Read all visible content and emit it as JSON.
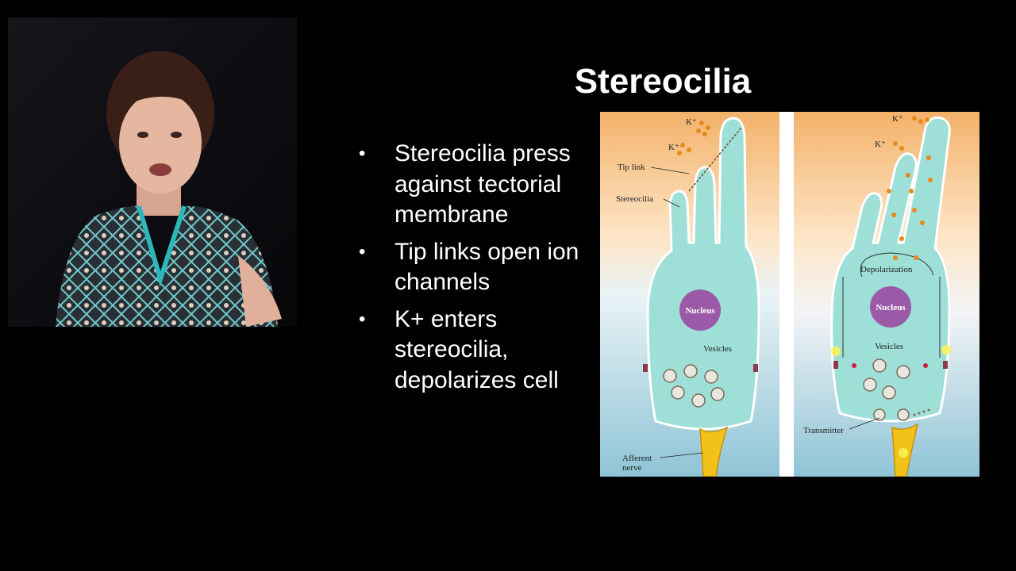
{
  "slide": {
    "title": "Stereocilia",
    "bullets": [
      "Stereocilia press against tectorial membrane",
      "Tip links open ion channels",
      "K+ enters stereocilia, depolarizes cell"
    ],
    "bullet_symbol": "•"
  },
  "figure": {
    "left": {
      "ion_label_1": "K⁺",
      "ion_label_2": "K⁺",
      "tip_link": "Tip link",
      "stereocilia": "Stereocilia",
      "nucleus": "Nucleus",
      "vesicles": "Vesicles",
      "afferent_nerve_1": "Afferent",
      "afferent_nerve_2": "nerve"
    },
    "right": {
      "ion_label_1": "K⁺",
      "ion_label_2": "K⁺",
      "depolarization": "Depolarization",
      "nucleus": "Nucleus",
      "vesicles": "Vesicles",
      "transmitter": "Transmitter"
    },
    "colors": {
      "cell": "#9edfd8",
      "nucleus": "#9b5aa8",
      "ion": "#e8891c",
      "nerve": "#f2c21a"
    }
  },
  "webcam": {
    "icon": "presenter-video"
  }
}
